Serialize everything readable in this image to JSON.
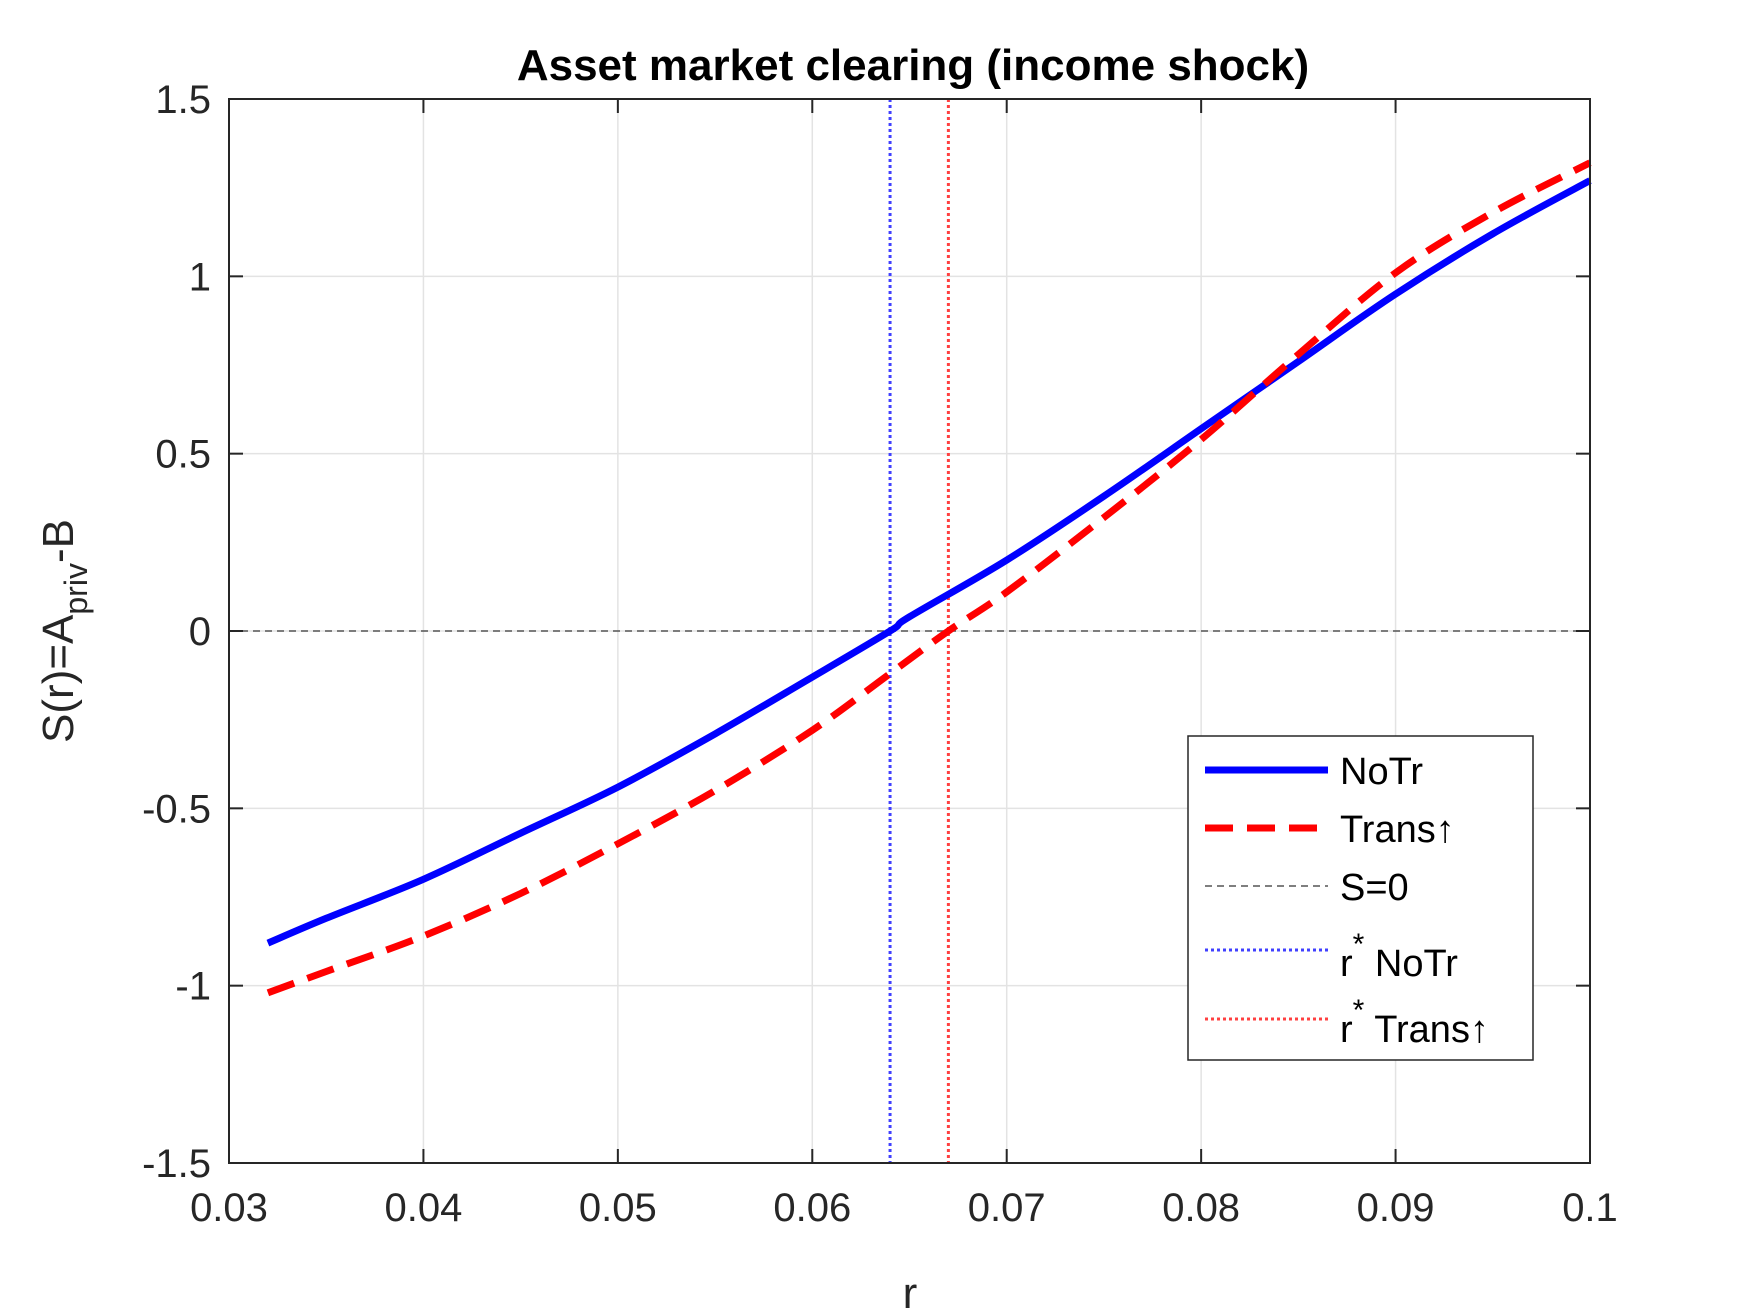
{
  "chart_data": {
    "type": "line",
    "title": "Asset market clearing (income shock)",
    "xlabel": "r",
    "ylabel": {
      "main": "S(r)=A",
      "subscript": "priv",
      "suffix": "-B"
    },
    "xlim": [
      0.03,
      0.1
    ],
    "ylim": [
      -1.5,
      1.5
    ],
    "xticks": [
      0.03,
      0.04,
      0.05,
      0.06,
      0.07,
      0.08,
      0.09,
      0.1
    ],
    "xtick_labels": [
      "0.03",
      "0.04",
      "0.05",
      "0.06",
      "0.07",
      "0.08",
      "0.09",
      "0.1"
    ],
    "yticks": [
      -1.5,
      -1,
      -0.5,
      0,
      0.5,
      1,
      1.5
    ],
    "ytick_labels": [
      "-1.5",
      "-1",
      "-0.5",
      "0",
      "0.5",
      "1",
      "1.5"
    ],
    "grid": true,
    "legend_position": "lower-right",
    "series": [
      {
        "name": "NoTr",
        "style": "solid",
        "color": "#0000ff",
        "x": [
          0.032,
          0.035,
          0.04,
          0.045,
          0.05,
          0.055,
          0.06,
          0.064,
          0.065,
          0.07,
          0.075,
          0.08,
          0.085,
          0.09,
          0.095,
          0.1
        ],
        "y": [
          -0.88,
          -0.81,
          -0.7,
          -0.57,
          -0.44,
          -0.29,
          -0.13,
          0.0,
          0.04,
          0.2,
          0.38,
          0.57,
          0.76,
          0.95,
          1.12,
          1.27
        ]
      },
      {
        "name": "Trans↑",
        "style": "dashed",
        "color": "#ff0000",
        "x": [
          0.032,
          0.035,
          0.04,
          0.045,
          0.05,
          0.055,
          0.06,
          0.064,
          0.067,
          0.07,
          0.075,
          0.08,
          0.085,
          0.09,
          0.095,
          0.1
        ],
        "y": [
          -1.02,
          -0.96,
          -0.86,
          -0.74,
          -0.6,
          -0.45,
          -0.28,
          -0.12,
          0.0,
          0.11,
          0.32,
          0.54,
          0.78,
          1.01,
          1.18,
          1.32
        ]
      }
    ],
    "reference_lines": [
      {
        "legend": "S=0",
        "orientation": "horizontal",
        "value": 0,
        "style": "dashed",
        "color": "#555555"
      },
      {
        "legend_main": "r",
        "legend_sup": "*",
        "legend_suffix": " NoTr",
        "orientation": "vertical",
        "value": 0.064,
        "style": "dotted",
        "color": "#4040ff"
      },
      {
        "legend_main": "r",
        "legend_sup": "*",
        "legend_suffix": " Trans↑",
        "orientation": "vertical",
        "value": 0.067,
        "style": "dotted",
        "color": "#ff4040"
      }
    ]
  }
}
